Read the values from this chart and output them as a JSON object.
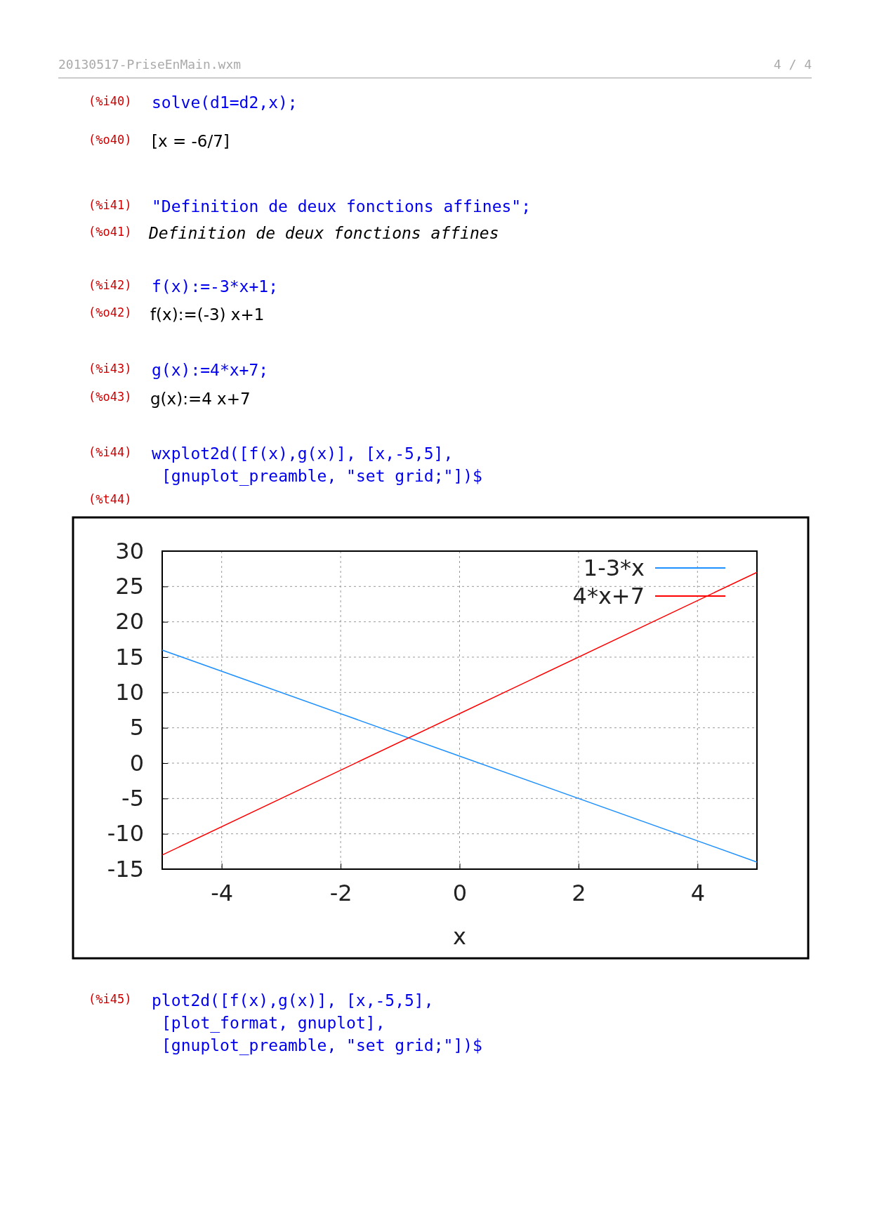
{
  "chart_data": {
    "type": "line",
    "xlabel": "x",
    "xlim": [
      -5,
      5
    ],
    "xticks": [
      -4,
      -2,
      0,
      2,
      4
    ],
    "ylim": [
      -15,
      30
    ],
    "yticks": [
      -15,
      -10,
      -5,
      0,
      5,
      10,
      15,
      20,
      25,
      30
    ],
    "grid": true,
    "legend": "top right",
    "line_style": "solid",
    "marker": "none",
    "x": [
      -5,
      0,
      5
    ],
    "series": [
      {
        "name": "1-3*x",
        "color": "#1e90ff",
        "values": [
          16,
          1,
          -14
        ]
      },
      {
        "name": "4*x+7",
        "color": "#ff0000",
        "values": [
          -13,
          7,
          27
        ]
      }
    ],
    "annotations": [
      "20130517-PriseEnMain.wxm",
      "4 / 4",
      "(%i40)",
      "solve(d1=d2,x);",
      "(%o40)",
      "[x = -6/7]",
      "(%i41)",
      "\"Definition de deux fonctions affines\";",
      "(%o41)",
      "Definition de deux fonctions affines",
      "(%i42)",
      "f(x):=-3*x+1;",
      "(%o42)",
      "f(x):=(-3) x+1",
      "(%i43)",
      "g(x):=4*x+7;",
      "(%o43)",
      "g(x):=4 x+7",
      "(%i44)",
      "wxplot2d([f(x),g(x)], [x,-5,5],",
      "[gnuplot_preamble, \"set grid;\"])$",
      "(%t44)",
      "(%i45)",
      "plot2d([f(x),g(x)], [x,-5,5],",
      "[plot_format, gnuplot],",
      "[gnuplot_preamble, \"set grid;\"])$"
    ]
  }
}
